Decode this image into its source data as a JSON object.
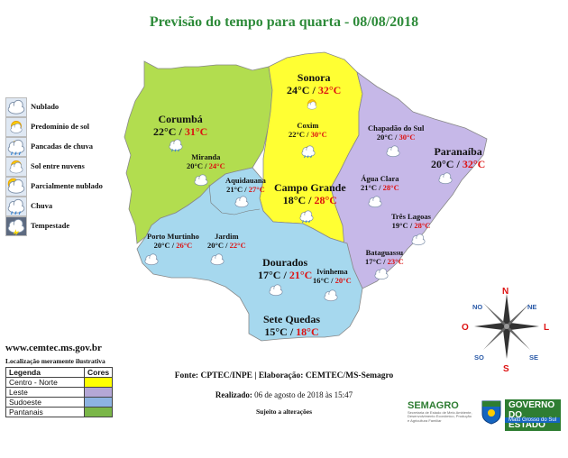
{
  "title": "Previsão do tempo para quarta - 08/08/2018",
  "legend_icons": [
    {
      "icon": "cloudy-icon",
      "label": "Nublado"
    },
    {
      "icon": "sun-icon",
      "label": "Predomínio de sol"
    },
    {
      "icon": "rain-showers-icon",
      "label": "Pancadas de chuva"
    },
    {
      "icon": "sun-clouds-icon",
      "label": "Sol entre nuvens"
    },
    {
      "icon": "partly-cloudy-icon",
      "label": "Parcialmente nublado"
    },
    {
      "icon": "rain-icon",
      "label": "Chuva"
    },
    {
      "icon": "storm-icon",
      "label": "Tempestade"
    }
  ],
  "cities": [
    {
      "name": "Sonora",
      "tmin": "24°C",
      "tmax": "32°C",
      "icon": "sun-icon"
    },
    {
      "name": "Coxim",
      "tmin": "22°C",
      "tmax": "30°C",
      "icon": "rain-showers-icon"
    },
    {
      "name": "Corumbá",
      "tmin": "22°C",
      "tmax": "31°C",
      "icon": "rain-showers-icon"
    },
    {
      "name": "Miranda",
      "tmin": "20°C",
      "tmax": "24°C",
      "icon": "cloudy-icon"
    },
    {
      "name": "Aquidauana",
      "tmin": "21°C",
      "tmax": "27°C",
      "icon": "cloudy-icon"
    },
    {
      "name": "Campo Grande",
      "tmin": "18°C",
      "tmax": "28°C",
      "icon": "rain-showers-icon"
    },
    {
      "name": "Chapadão do Sul",
      "tmin": "20°C",
      "tmax": "30°C",
      "icon": "cloudy-icon"
    },
    {
      "name": "Paranaíba",
      "tmin": "20°C",
      "tmax": "32°C",
      "icon": "cloudy-icon"
    },
    {
      "name": "Água Clara",
      "tmin": "21°C",
      "tmax": "28°C",
      "icon": "cloudy-icon"
    },
    {
      "name": "Três Lagoas",
      "tmin": "19°C",
      "tmax": "28°C",
      "icon": "cloudy-icon"
    },
    {
      "name": "Bataguassu",
      "tmin": "17°C",
      "tmax": "23°C",
      "icon": "cloudy-icon"
    },
    {
      "name": "Porto Murtinho",
      "tmin": "20°C",
      "tmax": "26°C",
      "icon": "cloudy-icon"
    },
    {
      "name": "Jardim",
      "tmin": "20°C",
      "tmax": "22°C",
      "icon": "cloudy-icon"
    },
    {
      "name": "Dourados",
      "tmin": "17°C",
      "tmax": "21°C",
      "icon": "cloudy-icon"
    },
    {
      "name": "Ivinhema",
      "tmin": "16°C",
      "tmax": "20°C",
      "icon": "cloudy-icon"
    },
    {
      "name": "Sete Quedas",
      "tmin": "15°C",
      "tmax": "18°C",
      "icon": "cloudy-icon"
    }
  ],
  "website": "www.cemtec.ms.gov.br",
  "map_note": "Localização meramente ilustrativa",
  "regions_legend": {
    "header_region": "Legenda",
    "header_color": "Cores",
    "rows": [
      {
        "label": "Centro - Norte",
        "color": "#ffff00"
      },
      {
        "label": "Leste",
        "color": "#b4a7d6"
      },
      {
        "label": "Sudoeste",
        "color": "#8db3e2"
      },
      {
        "label": "Pantanais",
        "color": "#7ab648"
      }
    ]
  },
  "region_colors": {
    "centro_norte": "#ffff33",
    "leste": "#c6b8e8",
    "sudoeste": "#a6d8ee",
    "pantanais": "#b2dd4f"
  },
  "source": "Fonte: CPTEC/INPE | Elaboração: CEMTEC/MS-Semagro",
  "issued_label": "Realizado:",
  "issued_value": "06 de agosto de 2018 às 15:47",
  "subject_note": "Sujeito a alterações",
  "compass": {
    "n": "N",
    "s": "S",
    "l": "L",
    "o": "O",
    "ne": "NE",
    "no": "NO",
    "se": "SE",
    "so": "SO"
  },
  "logos": {
    "semagro": "SEMAGRO",
    "semagro_sub": "Secretaria de Estado de Meio Ambiente, Desenvolvimento Econômico, Produção e Agricultura Familiar",
    "gov_title": "GOVERNO DO ESTADO",
    "gov_sub": "Mato Grosso do Sul"
  }
}
